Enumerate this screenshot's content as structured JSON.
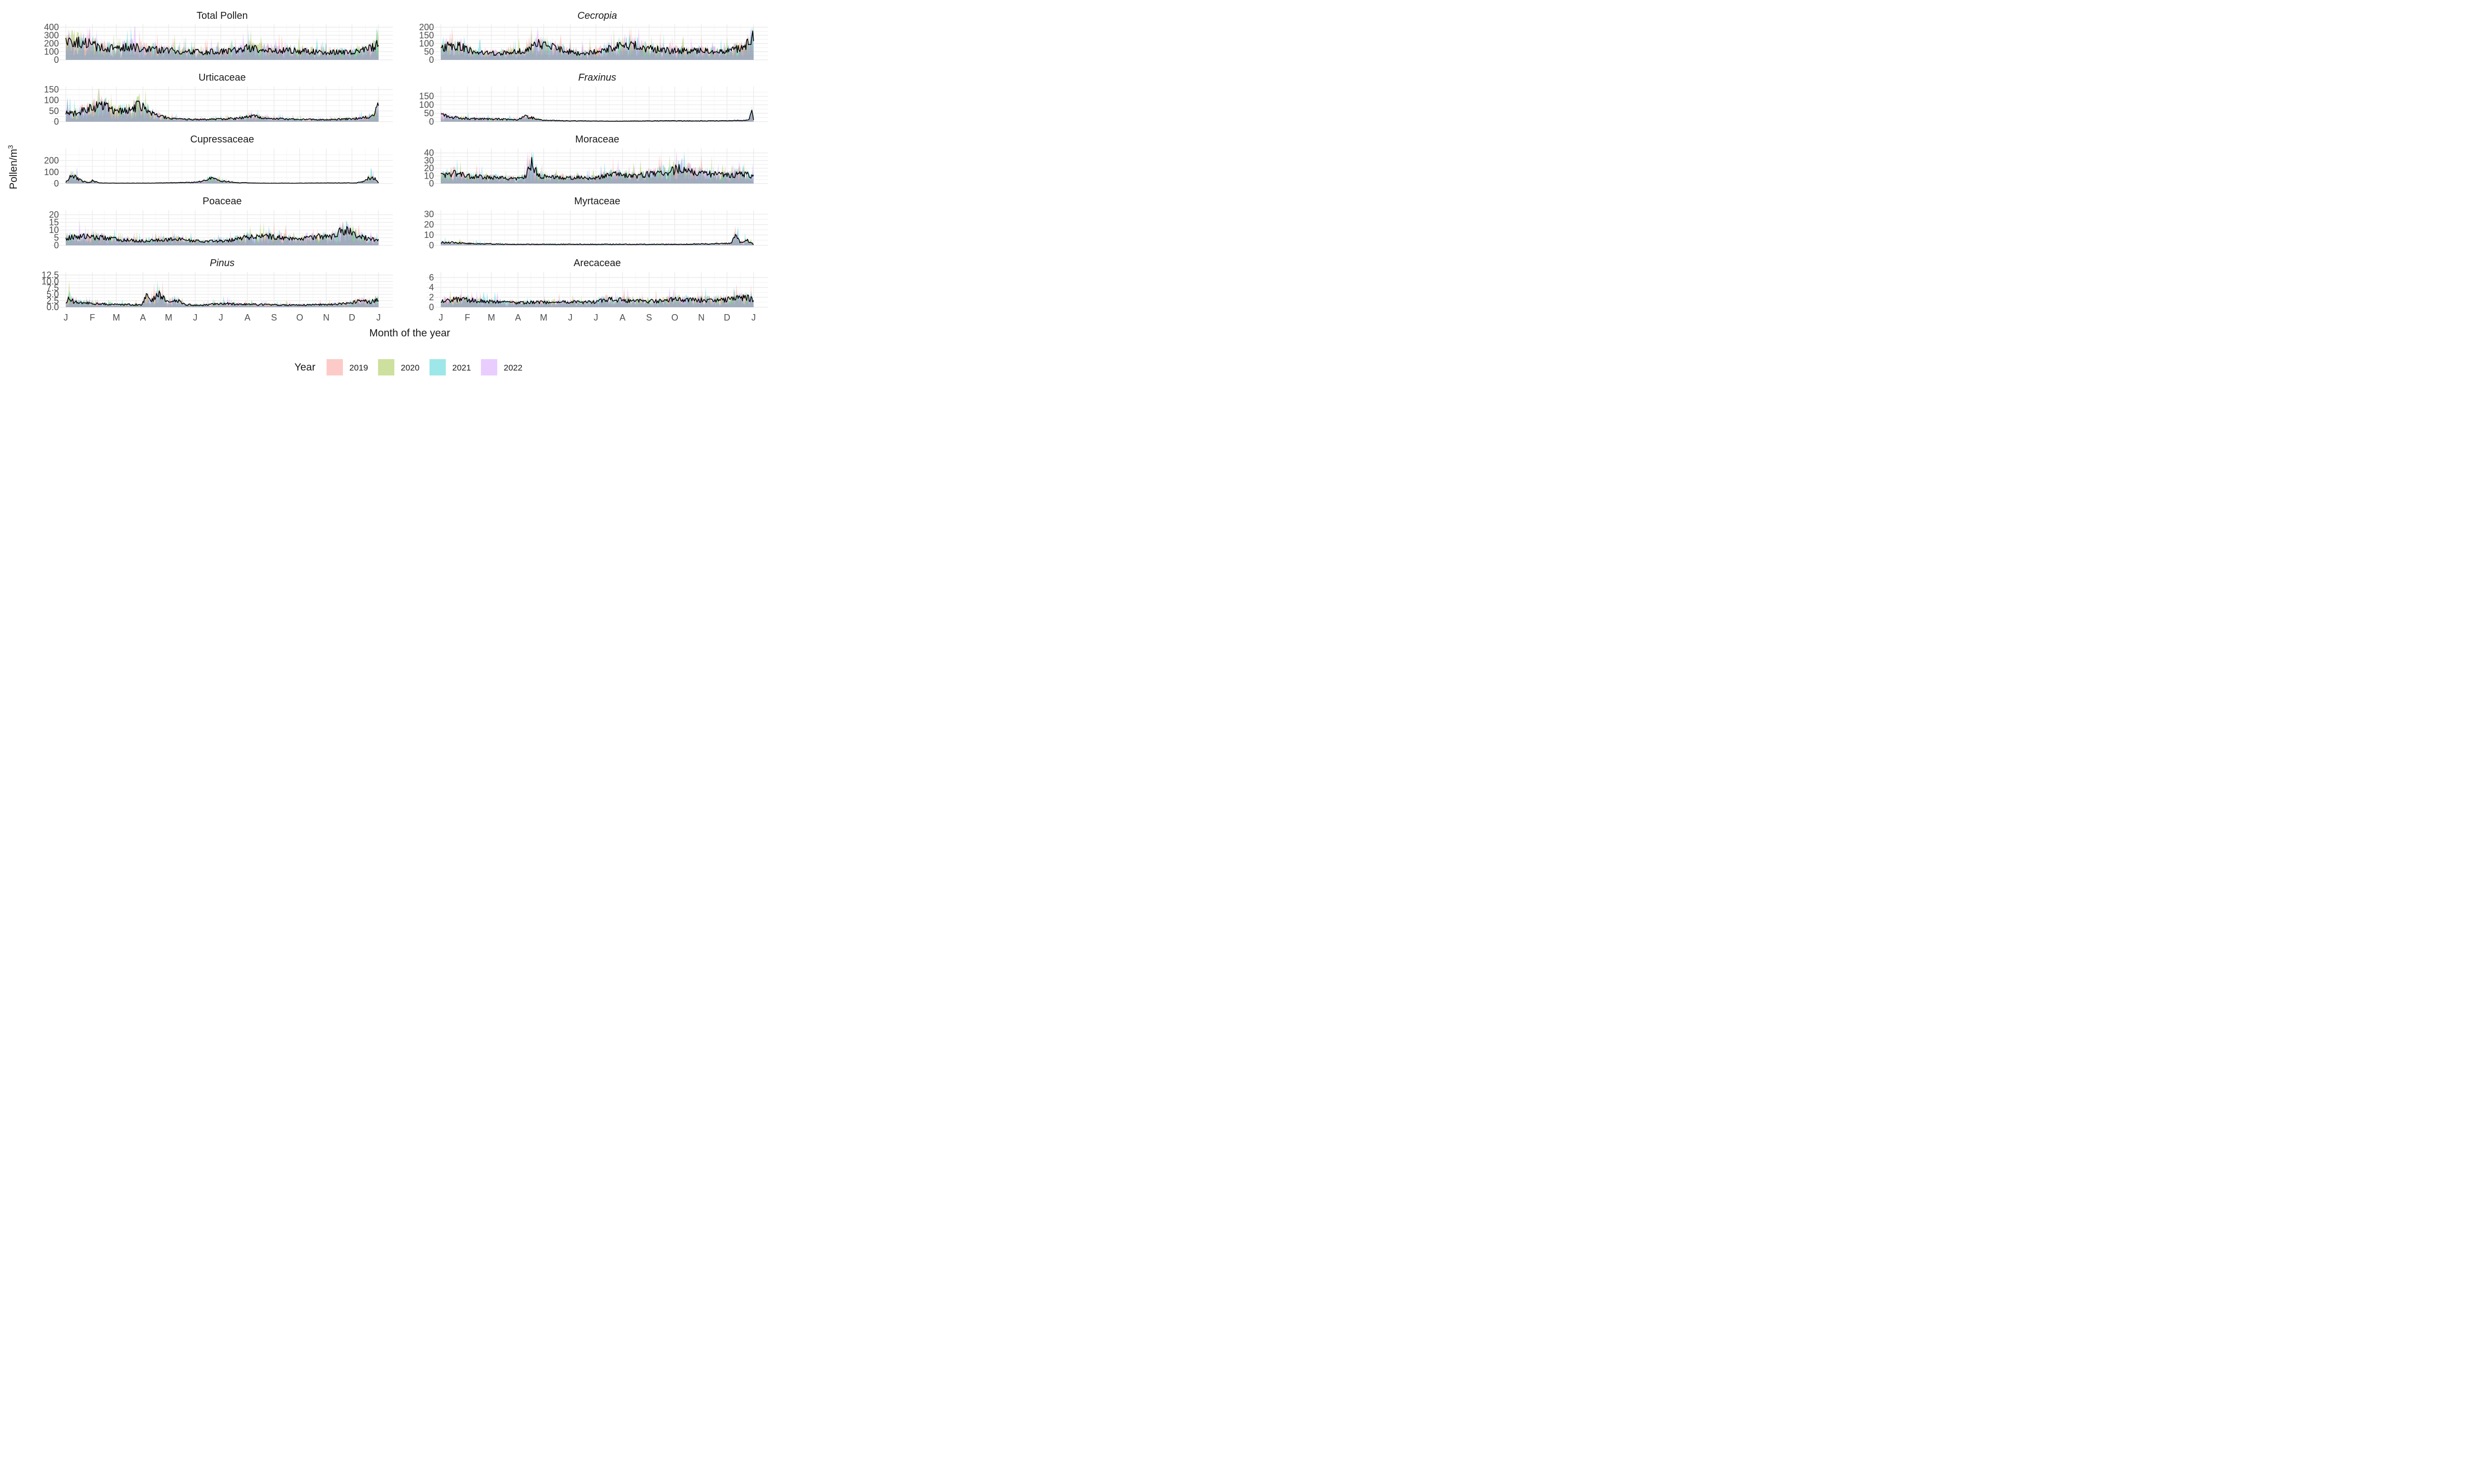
{
  "chart_data": {
    "type": "area",
    "xlabel": "Month of the year",
    "ylabel_base": "Pollen/m",
    "ylabel_sup": "3",
    "month_ticks": [
      "J",
      "F",
      "M",
      "A",
      "M",
      "J",
      "J",
      "A",
      "S",
      "O",
      "N",
      "D",
      "J"
    ],
    "legend": {
      "title": "Year",
      "placement": "bottom",
      "entries": [
        {
          "name": "2019",
          "color": "#F8766D"
        },
        {
          "name": "2020",
          "color": "#7CAE00"
        },
        {
          "name": "2021",
          "color": "#00BFC4"
        },
        {
          "name": "2022",
          "color": "#C77CFF"
        }
      ]
    },
    "mean_line_color": "#000000",
    "x_range_days": [
      1,
      366
    ],
    "panels": [
      {
        "title": "Total Pollen",
        "italic": false,
        "ylim": [
          0,
          400
        ],
        "yticks": [
          "0",
          "100",
          "200",
          "300",
          "400"
        ],
        "mean_profile": [
          [
            1,
            200
          ],
          [
            10,
            230
          ],
          [
            25,
            210
          ],
          [
            40,
            150
          ],
          [
            60,
            140
          ],
          [
            80,
            160
          ],
          [
            100,
            130
          ],
          [
            130,
            110
          ],
          [
            160,
            95
          ],
          [
            180,
            105
          ],
          [
            200,
            115
          ],
          [
            215,
            150
          ],
          [
            240,
            120
          ],
          [
            270,
            110
          ],
          [
            300,
            95
          ],
          [
            330,
            90
          ],
          [
            350,
            120
          ],
          [
            360,
            160
          ],
          [
            366,
            250
          ]
        ]
      },
      {
        "title": "Cecropia",
        "italic": true,
        "ylim": [
          0,
          200
        ],
        "yticks": [
          "0",
          "50",
          "100",
          "150",
          "200"
        ],
        "mean_profile": [
          [
            1,
            70
          ],
          [
            10,
            85
          ],
          [
            25,
            80
          ],
          [
            40,
            45
          ],
          [
            70,
            40
          ],
          [
            100,
            55
          ],
          [
            115,
            95
          ],
          [
            140,
            65
          ],
          [
            160,
            40
          ],
          [
            180,
            50
          ],
          [
            205,
            75
          ],
          [
            215,
            100
          ],
          [
            240,
            70
          ],
          [
            270,
            55
          ],
          [
            300,
            55
          ],
          [
            330,
            50
          ],
          [
            355,
            75
          ],
          [
            366,
            140
          ]
        ]
      },
      {
        "title": "Urticaceae",
        "italic": false,
        "ylim": [
          0,
          150
        ],
        "yticks": [
          "0",
          "50",
          "100",
          "150"
        ],
        "mean_profile": [
          [
            1,
            45
          ],
          [
            10,
            35
          ],
          [
            20,
            50
          ],
          [
            35,
            70
          ],
          [
            45,
            75
          ],
          [
            55,
            55
          ],
          [
            65,
            50
          ],
          [
            75,
            55
          ],
          [
            85,
            75
          ],
          [
            95,
            60
          ],
          [
            105,
            30
          ],
          [
            120,
            18
          ],
          [
            140,
            12
          ],
          [
            170,
            10
          ],
          [
            200,
            15
          ],
          [
            220,
            25
          ],
          [
            240,
            15
          ],
          [
            280,
            10
          ],
          [
            310,
            10
          ],
          [
            340,
            15
          ],
          [
            360,
            25
          ],
          [
            366,
            80
          ]
        ]
      },
      {
        "title": "Fraxinus",
        "italic": true,
        "ylim": [
          0,
          190
        ],
        "yticks": [
          "0",
          "50",
          "100",
          "150"
        ],
        "mean_profile": [
          [
            1,
            40
          ],
          [
            5,
            35
          ],
          [
            15,
            25
          ],
          [
            40,
            18
          ],
          [
            70,
            15
          ],
          [
            90,
            12
          ],
          [
            100,
            30
          ],
          [
            110,
            20
          ],
          [
            120,
            8
          ],
          [
            150,
            5
          ],
          [
            200,
            3
          ],
          [
            260,
            5
          ],
          [
            300,
            5
          ],
          [
            330,
            5
          ],
          [
            360,
            8
          ],
          [
            364,
            60
          ],
          [
            366,
            10
          ]
        ]
      },
      {
        "title": "Cupressaceae",
        "italic": false,
        "ylim": [
          0,
          280
        ],
        "yticks": [
          "0",
          "100",
          "200"
        ],
        "mean_profile": [
          [
            1,
            10
          ],
          [
            8,
            70
          ],
          [
            12,
            60
          ],
          [
            20,
            20
          ],
          [
            28,
            10
          ],
          [
            32,
            25
          ],
          [
            40,
            5
          ],
          [
            60,
            3
          ],
          [
            100,
            3
          ],
          [
            130,
            8
          ],
          [
            150,
            10
          ],
          [
            160,
            20
          ],
          [
            170,
            45
          ],
          [
            180,
            25
          ],
          [
            200,
            8
          ],
          [
            230,
            3
          ],
          [
            270,
            3
          ],
          [
            310,
            5
          ],
          [
            340,
            5
          ],
          [
            350,
            20
          ],
          [
            355,
            50
          ],
          [
            362,
            40
          ],
          [
            366,
            5
          ]
        ]
      },
      {
        "title": "Moraceae",
        "italic": false,
        "ylim": [
          0,
          42
        ],
        "yticks": [
          "0",
          "10",
          "20",
          "30",
          "40"
        ],
        "mean_profile": [
          [
            1,
            10
          ],
          [
            15,
            14
          ],
          [
            30,
            10
          ],
          [
            60,
            8
          ],
          [
            90,
            6
          ],
          [
            100,
            10
          ],
          [
            107,
            26
          ],
          [
            115,
            10
          ],
          [
            140,
            8
          ],
          [
            180,
            7
          ],
          [
            200,
            12
          ],
          [
            230,
            10
          ],
          [
            250,
            13
          ],
          [
            270,
            16
          ],
          [
            280,
            20
          ],
          [
            300,
            14
          ],
          [
            320,
            12
          ],
          [
            340,
            11
          ],
          [
            355,
            13
          ],
          [
            366,
            9
          ]
        ]
      },
      {
        "title": "Poaceae",
        "italic": false,
        "ylim": [
          0,
          21
        ],
        "yticks": [
          "0",
          "5",
          "10",
          "15",
          "20"
        ],
        "mean_profile": [
          [
            1,
            5
          ],
          [
            20,
            6
          ],
          [
            40,
            5
          ],
          [
            70,
            3.5
          ],
          [
            100,
            3
          ],
          [
            130,
            4
          ],
          [
            160,
            2.5
          ],
          [
            190,
            3
          ],
          [
            210,
            5
          ],
          [
            240,
            6
          ],
          [
            270,
            4
          ],
          [
            300,
            6
          ],
          [
            310,
            5
          ],
          [
            320,
            9
          ],
          [
            330,
            10
          ],
          [
            340,
            7
          ],
          [
            350,
            5
          ],
          [
            366,
            3
          ]
        ]
      },
      {
        "title": "Myrtaceae",
        "italic": false,
        "ylim": [
          0,
          31
        ],
        "yticks": [
          "0",
          "10",
          "20",
          "30"
        ],
        "mean_profile": [
          [
            1,
            3
          ],
          [
            10,
            3
          ],
          [
            30,
            2
          ],
          [
            80,
            1
          ],
          [
            150,
            1
          ],
          [
            220,
            1
          ],
          [
            280,
            1
          ],
          [
            320,
            1.5
          ],
          [
            340,
            2
          ],
          [
            345,
            12
          ],
          [
            350,
            3
          ],
          [
            358,
            5
          ],
          [
            366,
            1
          ]
        ]
      },
      {
        "title": "Pinus",
        "italic": true,
        "ylim": [
          0,
          12.5
        ],
        "yticks": [
          "0.0",
          "2.5",
          "5.0",
          "7.5",
          "10.0",
          "12.5"
        ],
        "mean_profile": [
          [
            1,
            1.5
          ],
          [
            5,
            4
          ],
          [
            10,
            2
          ],
          [
            30,
            1.5
          ],
          [
            60,
            1
          ],
          [
            90,
            1
          ],
          [
            95,
            4.5
          ],
          [
            100,
            2
          ],
          [
            110,
            5
          ],
          [
            120,
            2
          ],
          [
            130,
            3
          ],
          [
            140,
            1
          ],
          [
            160,
            0.8
          ],
          [
            185,
            1.5
          ],
          [
            200,
            1.2
          ],
          [
            230,
            1
          ],
          [
            270,
            0.8
          ],
          [
            300,
            1
          ],
          [
            330,
            1.5
          ],
          [
            345,
            2.5
          ],
          [
            356,
            2
          ],
          [
            366,
            3
          ]
        ]
      },
      {
        "title": "Arecaceae",
        "italic": false,
        "ylim": [
          0,
          6.5
        ],
        "yticks": [
          "0",
          "2",
          "4",
          "6"
        ],
        "mean_profile": [
          [
            1,
            1.2
          ],
          [
            20,
            1.6
          ],
          [
            50,
            1.2
          ],
          [
            90,
            0.9
          ],
          [
            130,
            1
          ],
          [
            180,
            1
          ],
          [
            190,
            1.5
          ],
          [
            200,
            1.6
          ],
          [
            230,
            1.2
          ],
          [
            260,
            1.2
          ],
          [
            275,
            1.7
          ],
          [
            300,
            1.4
          ],
          [
            330,
            1.5
          ],
          [
            345,
            1.8
          ],
          [
            360,
            1.9
          ],
          [
            366,
            1.4
          ]
        ]
      }
    ]
  }
}
